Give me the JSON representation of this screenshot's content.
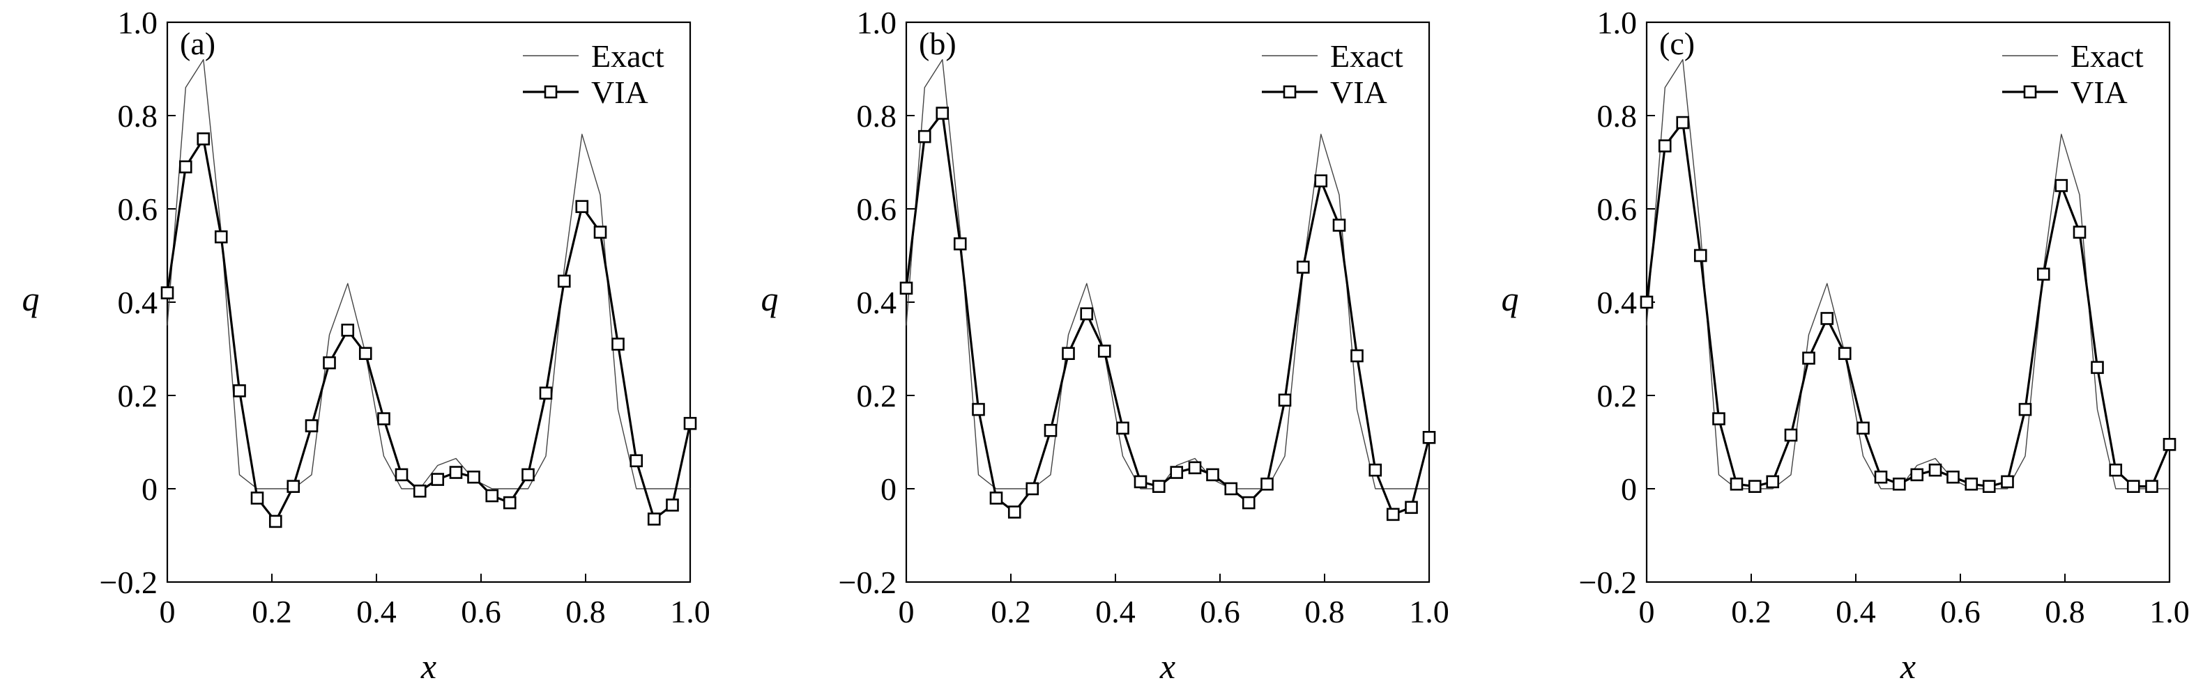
{
  "chart_data": [
    {
      "type": "line",
      "panel_label": "(a)",
      "xlabel": "x",
      "ylabel": "q",
      "xlim": [
        0,
        1.0
      ],
      "ylim": [
        -0.2,
        1.0
      ],
      "xticks": [
        0,
        0.2,
        0.4,
        0.6,
        0.8,
        1.0
      ],
      "xtick_labels": [
        "0",
        "0.2",
        "0.4",
        "0.6",
        "0.8",
        "1.0"
      ],
      "yticks": [
        -0.2,
        0,
        0.2,
        0.4,
        0.6,
        0.8,
        1.0
      ],
      "ytick_labels": [
        "−0.2",
        "0",
        "0.2",
        "0.4",
        "0.6",
        "0.8",
        "1.0"
      ],
      "legend": "top-right",
      "series": [
        {
          "name": "Exact",
          "style": "thin-line",
          "x": [
            0,
            0.035,
            0.069,
            0.103,
            0.138,
            0.172,
            0.207,
            0.241,
            0.276,
            0.31,
            0.345,
            0.379,
            0.414,
            0.448,
            0.483,
            0.517,
            0.552,
            0.586,
            0.621,
            0.655,
            0.69,
            0.724,
            0.759,
            0.793,
            0.828,
            0.862,
            0.897,
            0.931,
            0.966,
            1.0
          ],
          "y": [
            0.35,
            0.86,
            0.92,
            0.55,
            0.03,
            0.0,
            0.0,
            0.0,
            0.03,
            0.33,
            0.44,
            0.29,
            0.07,
            0.0,
            0.0,
            0.05,
            0.065,
            0.02,
            0.0,
            0.0,
            0.0,
            0.07,
            0.47,
            0.76,
            0.63,
            0.17,
            0.0,
            0.0,
            0.0,
            0.0
          ]
        },
        {
          "name": "VIA",
          "style": "line-square-markers",
          "x": [
            0,
            0.035,
            0.069,
            0.103,
            0.138,
            0.172,
            0.207,
            0.241,
            0.276,
            0.31,
            0.345,
            0.379,
            0.414,
            0.448,
            0.483,
            0.517,
            0.552,
            0.586,
            0.621,
            0.655,
            0.69,
            0.724,
            0.759,
            0.793,
            0.828,
            0.862,
            0.897,
            0.931,
            0.966,
            1.0
          ],
          "y": [
            0.42,
            0.69,
            0.75,
            0.54,
            0.21,
            -0.02,
            -0.07,
            0.005,
            0.135,
            0.27,
            0.34,
            0.29,
            0.15,
            0.03,
            -0.005,
            0.02,
            0.035,
            0.025,
            -0.015,
            -0.03,
            0.03,
            0.205,
            0.445,
            0.605,
            0.55,
            0.31,
            0.06,
            -0.065,
            -0.035,
            0.14
          ]
        }
      ]
    },
    {
      "type": "line",
      "panel_label": "(b)",
      "xlabel": "x",
      "ylabel": "q",
      "xlim": [
        0,
        1.0
      ],
      "ylim": [
        -0.2,
        1.0
      ],
      "xticks": [
        0,
        0.2,
        0.4,
        0.6,
        0.8,
        1.0
      ],
      "xtick_labels": [
        "0",
        "0.2",
        "0.4",
        "0.6",
        "0.8",
        "1.0"
      ],
      "yticks": [
        -0.2,
        0,
        0.2,
        0.4,
        0.6,
        0.8,
        1.0
      ],
      "ytick_labels": [
        "−0.2",
        "0",
        "0.2",
        "0.4",
        "0.6",
        "0.8",
        "1.0"
      ],
      "legend": "top-right",
      "series": [
        {
          "name": "Exact",
          "style": "thin-line",
          "x": [
            0,
            0.035,
            0.069,
            0.103,
            0.138,
            0.172,
            0.207,
            0.241,
            0.276,
            0.31,
            0.345,
            0.379,
            0.414,
            0.448,
            0.483,
            0.517,
            0.552,
            0.586,
            0.621,
            0.655,
            0.69,
            0.724,
            0.759,
            0.793,
            0.828,
            0.862,
            0.897,
            0.931,
            0.966,
            1.0
          ],
          "y": [
            0.35,
            0.86,
            0.92,
            0.55,
            0.03,
            0.0,
            0.0,
            0.0,
            0.03,
            0.33,
            0.44,
            0.29,
            0.07,
            0.0,
            0.0,
            0.05,
            0.065,
            0.02,
            0.0,
            0.0,
            0.0,
            0.07,
            0.47,
            0.76,
            0.63,
            0.17,
            0.0,
            0.0,
            0.0,
            0.0
          ]
        },
        {
          "name": "VIA",
          "style": "line-square-markers",
          "x": [
            0,
            0.035,
            0.069,
            0.103,
            0.138,
            0.172,
            0.207,
            0.241,
            0.276,
            0.31,
            0.345,
            0.379,
            0.414,
            0.448,
            0.483,
            0.517,
            0.552,
            0.586,
            0.621,
            0.655,
            0.69,
            0.724,
            0.759,
            0.793,
            0.828,
            0.862,
            0.897,
            0.931,
            0.966,
            1.0
          ],
          "y": [
            0.43,
            0.755,
            0.805,
            0.525,
            0.17,
            -0.02,
            -0.05,
            0.0,
            0.125,
            0.29,
            0.375,
            0.295,
            0.13,
            0.015,
            0.005,
            0.035,
            0.045,
            0.03,
            0.0,
            -0.03,
            0.01,
            0.19,
            0.475,
            0.66,
            0.565,
            0.285,
            0.04,
            -0.055,
            -0.04,
            0.11
          ]
        }
      ]
    },
    {
      "type": "line",
      "panel_label": "(c)",
      "xlabel": "x",
      "ylabel": "q",
      "xlim": [
        0,
        1.0
      ],
      "ylim": [
        -0.2,
        1.0
      ],
      "xticks": [
        0,
        0.2,
        0.4,
        0.6,
        0.8,
        1.0
      ],
      "xtick_labels": [
        "0",
        "0.2",
        "0.4",
        "0.6",
        "0.8",
        "1.0"
      ],
      "yticks": [
        -0.2,
        0,
        0.2,
        0.4,
        0.6,
        0.8,
        1.0
      ],
      "ytick_labels": [
        "−0.2",
        "0",
        "0.2",
        "0.4",
        "0.6",
        "0.8",
        "1.0"
      ],
      "legend": "top-right",
      "series": [
        {
          "name": "Exact",
          "style": "thin-line",
          "x": [
            0,
            0.035,
            0.069,
            0.103,
            0.138,
            0.172,
            0.207,
            0.241,
            0.276,
            0.31,
            0.345,
            0.379,
            0.414,
            0.448,
            0.483,
            0.517,
            0.552,
            0.586,
            0.621,
            0.655,
            0.69,
            0.724,
            0.759,
            0.793,
            0.828,
            0.862,
            0.897,
            0.931,
            0.966,
            1.0
          ],
          "y": [
            0.35,
            0.86,
            0.92,
            0.55,
            0.03,
            0.0,
            0.0,
            0.0,
            0.03,
            0.33,
            0.44,
            0.29,
            0.07,
            0.0,
            0.0,
            0.05,
            0.065,
            0.02,
            0.0,
            0.0,
            0.0,
            0.07,
            0.47,
            0.76,
            0.63,
            0.17,
            0.0,
            0.0,
            0.0,
            0.0
          ]
        },
        {
          "name": "VIA",
          "style": "line-square-markers",
          "x": [
            0,
            0.035,
            0.069,
            0.103,
            0.138,
            0.172,
            0.207,
            0.241,
            0.276,
            0.31,
            0.345,
            0.379,
            0.414,
            0.448,
            0.483,
            0.517,
            0.552,
            0.586,
            0.621,
            0.655,
            0.69,
            0.724,
            0.759,
            0.793,
            0.828,
            0.862,
            0.897,
            0.931,
            0.966,
            1.0
          ],
          "y": [
            0.4,
            0.735,
            0.785,
            0.5,
            0.15,
            0.01,
            0.005,
            0.015,
            0.115,
            0.28,
            0.365,
            0.29,
            0.13,
            0.025,
            0.01,
            0.03,
            0.04,
            0.025,
            0.01,
            0.005,
            0.015,
            0.17,
            0.46,
            0.65,
            0.55,
            0.26,
            0.04,
            0.005,
            0.005,
            0.095
          ]
        }
      ]
    }
  ]
}
